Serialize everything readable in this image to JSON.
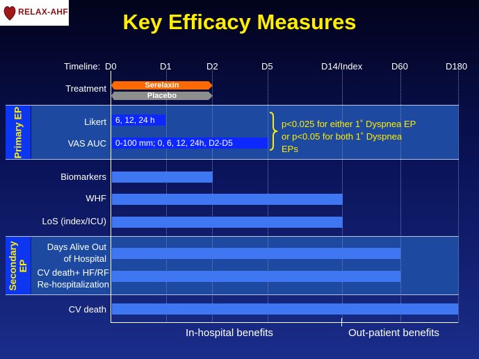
{
  "logo": {
    "text": "RELAX-AHF"
  },
  "title": "Key Efficacy Measures",
  "timeline": {
    "label": "Timeline:",
    "ticks": [
      "D0",
      "D1",
      "D2",
      "D5",
      "D14/Index",
      "D60",
      "D180"
    ]
  },
  "treatment": {
    "label": "Treatment",
    "serelaxin": "Serelaxin",
    "placebo": "Placebo"
  },
  "primary": {
    "section_label": "Primary EP",
    "likert_label": "Likert",
    "likert_bar": "6, 12, 24 h",
    "vas_label": "VAS AUC",
    "vas_bar": "0-100 mm; 0, 6, 12, 24h, D2-D5",
    "note_line1": "p<0.025 for either 1˚   Dyspnea EP",
    "note_line2": "or p<0.05 for both 1˚   Dyspnea",
    "note_line3": "EPs"
  },
  "rows": {
    "biomarkers": "Biomarkers",
    "whf": "WHF",
    "los": "LoS (index/ICU)"
  },
  "secondary": {
    "section_label": "Secondary EP",
    "days_alive_1": "Days Alive Out",
    "days_alive_2": "of Hospital",
    "cv_hf_1": "CV death+ HF/RF",
    "cv_hf_2": "Re-hospitalization"
  },
  "cv_death": "CV death",
  "footer": {
    "in_hospital": "In-hospital benefits",
    "out_patient": "Out-patient benefits"
  },
  "colors": {
    "title": "#ffee00",
    "serelaxin_arrow": "#ff6a00",
    "placebo_arrow": "#8e8e8e",
    "section_box": "#0c36f0",
    "bar": "#3f77f2"
  }
}
